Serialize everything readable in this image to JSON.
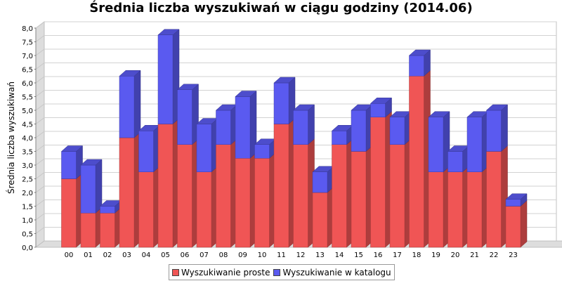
{
  "chart_data": {
    "type": "bar",
    "stacked": true,
    "render": "3d",
    "title": "Średnia liczba wyszukiwań w ciągu godziny (2014.06)",
    "ylabel": "Średnia liczba wyszukiwań",
    "xlabel": "",
    "ylim": [
      0,
      8
    ],
    "yticks": [
      "0,0",
      "0,5",
      "1,0",
      "1,5",
      "2,0",
      "2,5",
      "3,0",
      "3,5",
      "4,0",
      "4,5",
      "5,0",
      "5,5",
      "6,0",
      "6,5",
      "7,0",
      "7,5",
      "8,0"
    ],
    "grid": true,
    "legend_position": "bottom",
    "categories": [
      "00",
      "01",
      "02",
      "03",
      "04",
      "05",
      "06",
      "07",
      "08",
      "09",
      "10",
      "11",
      "12",
      "13",
      "14",
      "15",
      "16",
      "17",
      "18",
      "19",
      "20",
      "21",
      "22",
      "23"
    ],
    "series": [
      {
        "name": "Wyszukiwanie proste",
        "color": "#f05555",
        "values": [
          2.5,
          1.25,
          1.25,
          4.0,
          2.75,
          4.5,
          3.75,
          2.75,
          3.75,
          3.25,
          3.25,
          4.5,
          3.75,
          2.0,
          3.75,
          3.5,
          4.75,
          3.75,
          6.25,
          2.75,
          2.75,
          2.75,
          3.5,
          1.5
        ]
      },
      {
        "name": "Wyszukiwanie w katalogu",
        "color": "#5a5af0",
        "values": [
          1.0,
          1.75,
          0.25,
          2.25,
          1.5,
          3.25,
          2.0,
          1.75,
          1.25,
          2.25,
          0.5,
          1.5,
          1.25,
          0.75,
          0.5,
          1.5,
          0.5,
          1.0,
          0.75,
          2.0,
          0.75,
          2.0,
          1.5,
          0.25
        ]
      }
    ]
  }
}
